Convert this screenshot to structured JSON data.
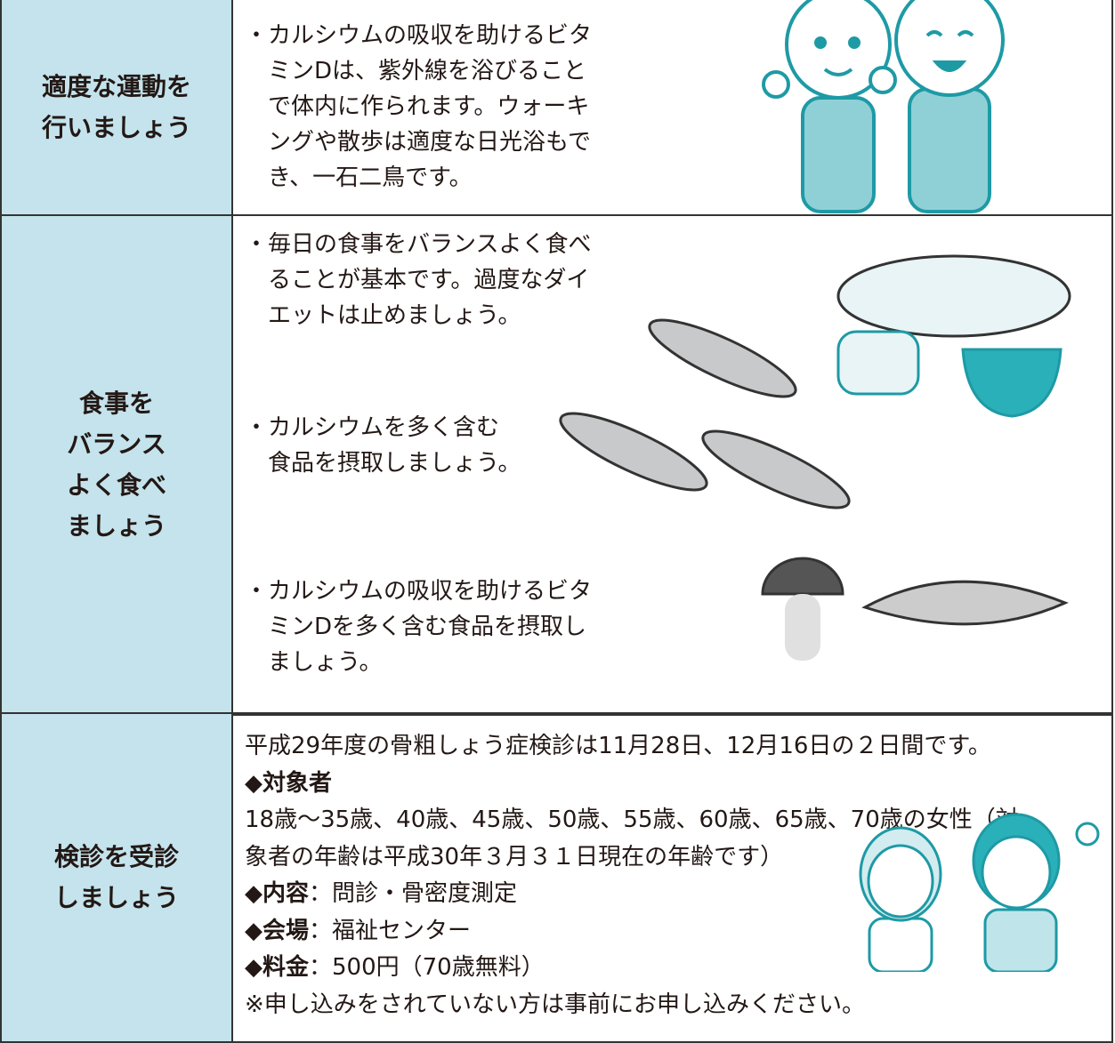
{
  "table": {
    "rows": [
      {
        "header": [
          "適度な運動を",
          "行いましょう"
        ],
        "items": [
          [
            "・カルシウムの吸収を助けるビタ",
            "　ミンDは、紫外線を浴びること",
            "　で体内に作られます。ウォーキ",
            "　ングや散歩は適度な日光浴もで",
            "　き、一石二鳥です。"
          ]
        ]
      },
      {
        "header": [
          "食事を",
          "バランス",
          "よく食べ",
          "ましょう"
        ],
        "items": [
          [
            "・毎日の食事をバランスよく食べ",
            "　ることが基本です。過度なダイ",
            "　エットは止めましょう。"
          ],
          [
            "・カルシウムを多く含む",
            "　食品を摂取しましょう。"
          ],
          [
            "・カルシウムの吸収を助けるビタ",
            "　ミンDを多く含む食品を摂取し",
            "　ましょう。"
          ]
        ]
      },
      {
        "header": [
          "検診を受診",
          "しましょう"
        ],
        "intro": "平成29年度の骨粗しょう症検診は11月28日、12月16日の２日間です。",
        "target": {
          "label": "◆対象者",
          "lines": [
            "18歳～35歳、40歳、45歳、50歳、55歳、60歳、65歳、70歳の女性（対",
            "象者の年齢は平成30年３月３１日現在の年齢です）"
          ]
        },
        "details": [
          {
            "label": "◆内容",
            "text": "：問診・骨密度測定"
          },
          {
            "label": "◆会場",
            "text": "：福祉センター"
          },
          {
            "label": "◆料金",
            "text": "：500円（70歳無料）"
          }
        ],
        "note": "※申し込みをされていない方は事前にお申し込みください。"
      }
    ]
  }
}
